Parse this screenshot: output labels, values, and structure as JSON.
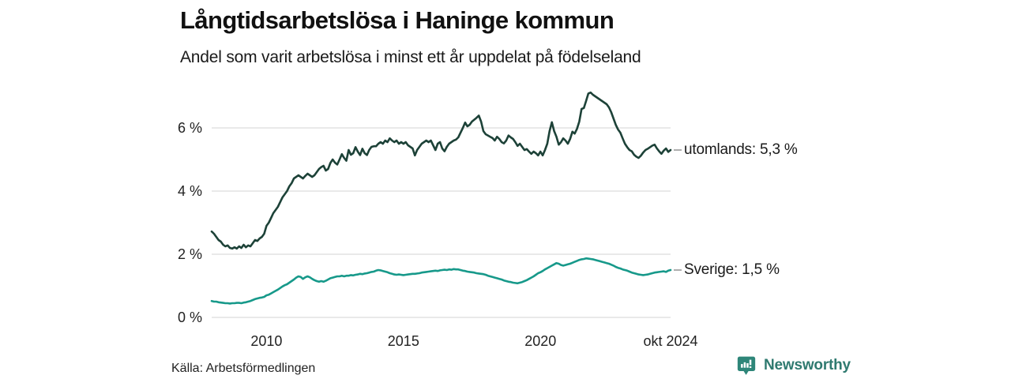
{
  "header": {
    "title": "Långtidsarbetslösa i Haninge kommun",
    "subtitle": "Andel som varit arbetslösa i minst ett år uppdelat på födelseland"
  },
  "footer": {
    "source": "Källa: Arbetsförmedlingen",
    "brand": "Newsworthy"
  },
  "colors": {
    "grid": "#dcdcdc",
    "axis_text": "#222222",
    "foreign_born_line": "#1d4238",
    "sweden_born_line": "#17998a",
    "label_dash": "#999999",
    "brand_teal": "#2e8679",
    "brand_text": "#2f7a70"
  },
  "chart_data": {
    "type": "line",
    "title": "Långtidsarbetslösa i Haninge kommun",
    "subtitle": "Andel som varit arbetslösa i minst ett år uppdelat på födelseland",
    "unit": "%",
    "frequency": "monthly",
    "x_start": 2008.0,
    "x_end": 2024.75,
    "x_start_label": "jan 2008",
    "x_end_label": "okt 2024",
    "ylim": [
      0,
      7.3
    ],
    "grid": "horizontal-only",
    "legend_position": "right-edge-annotations",
    "y_ticks": [
      {
        "value": 0,
        "label": "0 %"
      },
      {
        "value": 2,
        "label": "2 %"
      },
      {
        "value": 4,
        "label": "4 %"
      },
      {
        "value": 6,
        "label": "6 %"
      }
    ],
    "x_ticks": [
      {
        "year": 2010,
        "label": "2010"
      },
      {
        "year": 2015,
        "label": "2015"
      },
      {
        "year": 2020,
        "label": "2020"
      },
      {
        "year": 2024.75,
        "label": "okt 2024"
      }
    ],
    "series": [
      {
        "name": "utomlands",
        "label": "utomlands: 5,3 %",
        "last_value": 5.3,
        "color": "#1d4238",
        "values": [
          2.72,
          2.65,
          2.55,
          2.45,
          2.4,
          2.3,
          2.25,
          2.28,
          2.2,
          2.18,
          2.22,
          2.18,
          2.25,
          2.2,
          2.3,
          2.22,
          2.28,
          2.25,
          2.35,
          2.45,
          2.42,
          2.5,
          2.55,
          2.65,
          2.9,
          3.0,
          3.15,
          3.3,
          3.4,
          3.5,
          3.65,
          3.8,
          3.9,
          4.0,
          4.15,
          4.25,
          4.4,
          4.45,
          4.5,
          4.45,
          4.4,
          4.48,
          4.55,
          4.5,
          4.45,
          4.5,
          4.6,
          4.7,
          4.76,
          4.8,
          4.65,
          4.7,
          4.89,
          5.0,
          4.9,
          4.84,
          5.0,
          5.17,
          5.05,
          4.96,
          5.3,
          5.15,
          5.2,
          5.39,
          5.25,
          5.14,
          5.34,
          5.2,
          5.14,
          5.3,
          5.4,
          5.42,
          5.42,
          5.5,
          5.55,
          5.5,
          5.6,
          5.55,
          5.67,
          5.6,
          5.55,
          5.6,
          5.5,
          5.55,
          5.5,
          5.55,
          5.45,
          5.4,
          5.35,
          5.13,
          5.3,
          5.4,
          5.5,
          5.55,
          5.6,
          5.55,
          5.6,
          5.45,
          5.3,
          5.5,
          5.55,
          5.35,
          5.26,
          5.4,
          5.5,
          5.55,
          5.6,
          5.63,
          5.7,
          5.85,
          6.0,
          6.17,
          6.05,
          6.1,
          6.2,
          6.26,
          6.32,
          6.39,
          6.2,
          5.9,
          5.8,
          5.76,
          5.72,
          5.68,
          5.6,
          5.72,
          5.65,
          5.55,
          5.51,
          5.6,
          5.76,
          5.7,
          5.65,
          5.55,
          5.43,
          5.5,
          5.4,
          5.3,
          5.33,
          5.25,
          5.18,
          5.25,
          5.2,
          5.13,
          5.25,
          5.13,
          5.3,
          5.5,
          5.9,
          6.18,
          5.9,
          5.72,
          5.47,
          5.55,
          5.67,
          5.6,
          5.5,
          5.65,
          5.88,
          5.82,
          5.97,
          6.2,
          6.6,
          6.63,
          6.85,
          7.09,
          7.12,
          7.05,
          7.0,
          6.95,
          6.9,
          6.85,
          6.8,
          6.75,
          6.65,
          6.5,
          6.3,
          6.1,
          5.95,
          5.85,
          5.67,
          5.5,
          5.39,
          5.3,
          5.26,
          5.15,
          5.09,
          5.05,
          5.12,
          5.22,
          5.3,
          5.34,
          5.39,
          5.44,
          5.47,
          5.35,
          5.26,
          5.18,
          5.28,
          5.35,
          5.24,
          5.3
        ]
      },
      {
        "name": "Sverige",
        "label": "Sverige: 1,5 %",
        "last_value": 1.5,
        "color": "#17998a",
        "values": [
          0.52,
          0.5,
          0.5,
          0.48,
          0.47,
          0.46,
          0.45,
          0.45,
          0.44,
          0.45,
          0.45,
          0.46,
          0.46,
          0.45,
          0.47,
          0.48,
          0.5,
          0.52,
          0.55,
          0.58,
          0.6,
          0.62,
          0.63,
          0.65,
          0.7,
          0.72,
          0.76,
          0.8,
          0.84,
          0.88,
          0.93,
          0.98,
          1.02,
          1.05,
          1.1,
          1.15,
          1.2,
          1.26,
          1.3,
          1.28,
          1.22,
          1.27,
          1.3,
          1.27,
          1.22,
          1.18,
          1.15,
          1.13,
          1.15,
          1.13,
          1.16,
          1.2,
          1.24,
          1.26,
          1.28,
          1.3,
          1.3,
          1.32,
          1.3,
          1.32,
          1.32,
          1.34,
          1.33,
          1.35,
          1.36,
          1.38,
          1.37,
          1.39,
          1.4,
          1.42,
          1.44,
          1.45,
          1.48,
          1.5,
          1.49,
          1.47,
          1.45,
          1.43,
          1.4,
          1.38,
          1.36,
          1.35,
          1.36,
          1.35,
          1.34,
          1.35,
          1.36,
          1.37,
          1.38,
          1.38,
          1.39,
          1.4,
          1.42,
          1.43,
          1.44,
          1.45,
          1.46,
          1.47,
          1.48,
          1.47,
          1.49,
          1.5,
          1.51,
          1.5,
          1.52,
          1.51,
          1.53,
          1.52,
          1.52,
          1.5,
          1.48,
          1.47,
          1.45,
          1.44,
          1.43,
          1.42,
          1.4,
          1.39,
          1.38,
          1.37,
          1.35,
          1.32,
          1.3,
          1.28,
          1.26,
          1.24,
          1.22,
          1.2,
          1.17,
          1.15,
          1.13,
          1.12,
          1.1,
          1.09,
          1.08,
          1.1,
          1.12,
          1.15,
          1.18,
          1.22,
          1.26,
          1.3,
          1.35,
          1.4,
          1.43,
          1.47,
          1.52,
          1.56,
          1.6,
          1.64,
          1.68,
          1.72,
          1.7,
          1.66,
          1.64,
          1.66,
          1.68,
          1.7,
          1.73,
          1.76,
          1.79,
          1.82,
          1.84,
          1.85,
          1.87,
          1.86,
          1.85,
          1.84,
          1.82,
          1.8,
          1.78,
          1.76,
          1.74,
          1.72,
          1.7,
          1.67,
          1.64,
          1.6,
          1.57,
          1.55,
          1.52,
          1.5,
          1.48,
          1.45,
          1.42,
          1.4,
          1.38,
          1.36,
          1.35,
          1.34,
          1.35,
          1.36,
          1.38,
          1.4,
          1.42,
          1.43,
          1.44,
          1.45,
          1.46,
          1.44,
          1.48,
          1.5
        ]
      }
    ]
  }
}
